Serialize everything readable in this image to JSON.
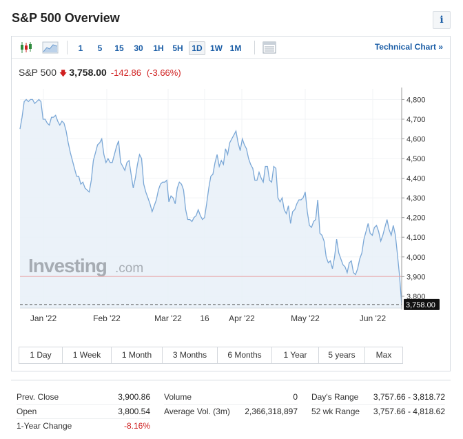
{
  "page_title": "S&P 500 Overview",
  "info_icon": "i",
  "toolbar": {
    "candles_icon": "candlestick-chart-icon",
    "area_icon": "area-chart-icon",
    "intervals": [
      "1",
      "5",
      "15",
      "30",
      "1H",
      "5H",
      "1D",
      "1W",
      "1M"
    ],
    "active_interval": "1D",
    "table_icon": "table-icon",
    "technical_link": "Technical Chart »"
  },
  "quote": {
    "symbol": "S&P 500",
    "last": "3,758.00",
    "change": "-142.86",
    "change_pct": "(-3.66%)"
  },
  "watermark": {
    "brand": "Investing",
    "suffix": ".com"
  },
  "chart_data": {
    "type": "area",
    "title": "",
    "x_labels": [
      "Jan '22",
      "Feb '22",
      "Mar '22",
      "16",
      "Apr '22",
      "May '22",
      "Jun '22"
    ],
    "y_ticks": [
      4800,
      4700,
      4600,
      4500,
      4400,
      4300,
      4200,
      4100,
      4000,
      3900,
      3800
    ],
    "y_tick_labels": [
      "4,800",
      "4,700",
      "4,600",
      "4,500",
      "4,400",
      "4,300",
      "4,200",
      "4,100",
      "4,000",
      "3,900",
      "3,800"
    ],
    "ylim": [
      3740,
      4840
    ],
    "prev_close": 3900.86,
    "last_price": 3758.0,
    "last_label": "3,758.00",
    "series": [
      {
        "values": [
          4650,
          4710,
          4790,
          4800,
          4790,
          4800,
          4800,
          4780,
          4790,
          4800,
          4790,
          4700,
          4700,
          4680,
          4670,
          4710,
          4710,
          4720,
          4690,
          4670,
          4690,
          4680,
          4640,
          4580,
          4530,
          4490,
          4450,
          4410,
          4410,
          4370,
          4380,
          4350,
          4340,
          4330,
          4390,
          4490,
          4530,
          4570,
          4580,
          4600,
          4520,
          4480,
          4500,
          4480,
          4480,
          4520,
          4560,
          4590,
          4480,
          4460,
          4440,
          4480,
          4490,
          4420,
          4350,
          4400,
          4470,
          4520,
          4500,
          4370,
          4330,
          4300,
          4270,
          4230,
          4260,
          4290,
          4340,
          4370,
          4380,
          4380,
          4390,
          4280,
          4310,
          4300,
          4270,
          4350,
          4380,
          4370,
          4340,
          4240,
          4190,
          4190,
          4180,
          4200,
          4210,
          4240,
          4210,
          4190,
          4200,
          4270,
          4350,
          4410,
          4420,
          4480,
          4520,
          4460,
          4490,
          4470,
          4550,
          4520,
          4580,
          4600,
          4620,
          4640,
          4580,
          4540,
          4600,
          4570,
          4550,
          4500,
          4470,
          4450,
          4390,
          4390,
          4430,
          4400,
          4380,
          4460,
          4460,
          4390,
          4380,
          4460,
          4450,
          4300,
          4280,
          4300,
          4240,
          4220,
          4260,
          4170,
          4230,
          4240,
          4270,
          4290,
          4290,
          4300,
          4330,
          4230,
          4160,
          4150,
          4180,
          4190,
          4290,
          4120,
          4110,
          4080,
          4000,
          3970,
          3980,
          3940,
          4000,
          4090,
          4020,
          3990,
          3960,
          3950,
          3920,
          3970,
          3980,
          3920,
          3910,
          3940,
          3990,
          4020,
          4090,
          4130,
          4170,
          4120,
          4110,
          4150,
          4160,
          4130,
          4080,
          4110,
          4150,
          4190,
          4140,
          4110,
          4160,
          4110,
          4010,
          3900,
          3758
        ]
      }
    ]
  },
  "ranges": [
    "1 Day",
    "1 Week",
    "1 Month",
    "3 Months",
    "6 Months",
    "1 Year",
    "5 years",
    "Max"
  ],
  "stats": {
    "col1": [
      {
        "label": "Prev. Close",
        "value": "3,900.86"
      },
      {
        "label": "Open",
        "value": "3,800.54"
      },
      {
        "label": "1-Year Change",
        "value": "-8.16%"
      }
    ],
    "col2": [
      {
        "label": "Volume",
        "value": "0"
      },
      {
        "label": "Average Vol. (3m)",
        "value": "2,366,318,897"
      }
    ],
    "col3": [
      {
        "label": "Day's Range",
        "value": "3,757.66 - 3,818.72"
      },
      {
        "label": "52 wk Range",
        "value": "3,757.66 - 4,818.62"
      }
    ]
  },
  "colors": {
    "accent": "#1a5da6",
    "negative": "#cf1f1f",
    "line": "#7aa7d6",
    "fill": "#e8f0f8",
    "prev_close_line": "#e8a0a0"
  }
}
